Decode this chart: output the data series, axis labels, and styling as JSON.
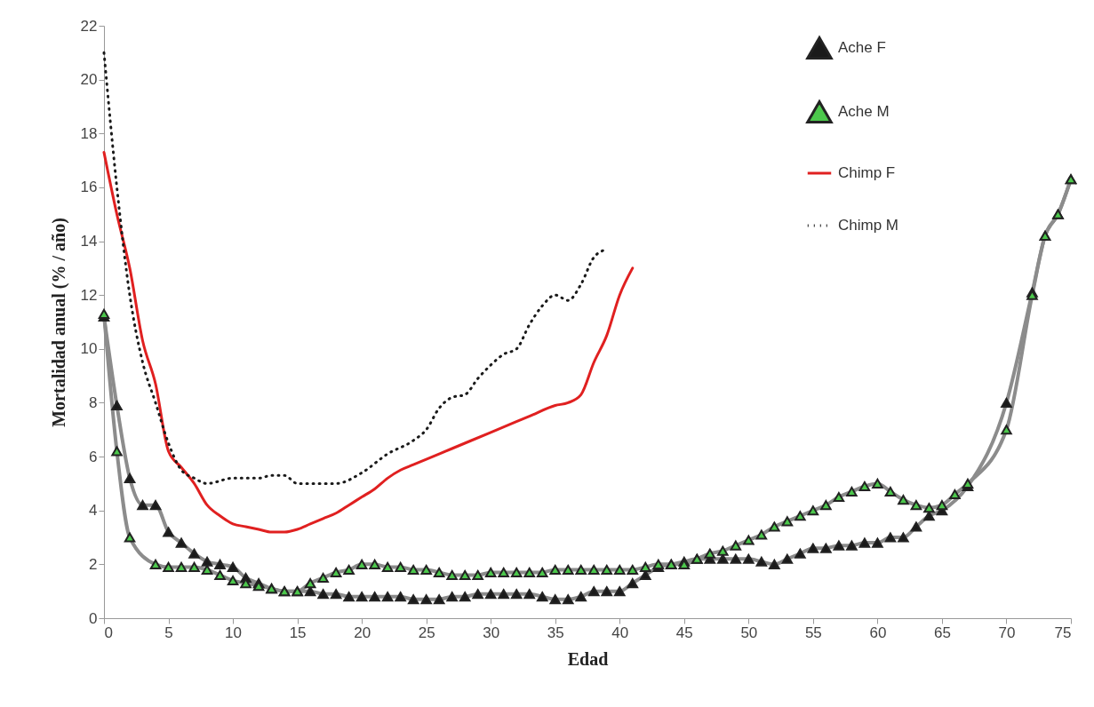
{
  "chart_data": {
    "type": "line",
    "xlabel": "Edad",
    "ylabel": "Mortalidad anual (% / año)",
    "xlim": [
      0,
      75
    ],
    "xticks": [
      0,
      5,
      10,
      15,
      20,
      25,
      30,
      35,
      40,
      45,
      50,
      55,
      60,
      65,
      70,
      75
    ],
    "ylim": [
      0,
      22
    ],
    "yticks": [
      0,
      2,
      4,
      6,
      8,
      10,
      12,
      14,
      16,
      18,
      20,
      22
    ],
    "grid": false,
    "legend": "top right",
    "series": [
      {
        "name": "Ache F",
        "color": "#1a1a1a",
        "marker": "triangle",
        "line_style": "solid",
        "x": [
          0,
          1,
          2,
          3,
          4,
          5,
          6,
          7,
          8,
          9,
          10,
          11,
          12,
          13,
          14,
          15,
          16,
          17,
          18,
          19,
          20,
          21,
          22,
          23,
          24,
          25,
          26,
          27,
          28,
          29,
          30,
          31,
          32,
          33,
          34,
          35,
          36,
          37,
          38,
          39,
          40,
          41,
          42,
          43,
          44,
          45,
          46,
          47,
          48,
          49,
          50,
          51,
          52,
          53,
          54,
          55,
          56,
          57,
          58,
          59,
          60,
          61,
          62,
          63,
          64,
          65,
          67,
          70,
          72,
          73,
          74,
          75
        ],
        "values": [
          11.2,
          7.9,
          5.2,
          4.2,
          4.2,
          3.2,
          2.8,
          2.4,
          2.1,
          2.0,
          1.9,
          1.5,
          1.3,
          1.1,
          1.0,
          1.0,
          1.0,
          0.9,
          0.9,
          0.8,
          0.8,
          0.8,
          0.8,
          0.8,
          0.7,
          0.7,
          0.7,
          0.8,
          0.8,
          0.9,
          0.9,
          0.9,
          0.9,
          0.9,
          0.8,
          0.7,
          0.7,
          0.8,
          1.0,
          1.0,
          1.0,
          1.3,
          1.6,
          1.9,
          2.0,
          2.1,
          2.2,
          2.2,
          2.2,
          2.2,
          2.2,
          2.1,
          2.0,
          2.2,
          2.4,
          2.6,
          2.6,
          2.7,
          2.7,
          2.8,
          2.8,
          3.0,
          3.0,
          3.4,
          3.8,
          4.0,
          4.9,
          8.0,
          12.1,
          14.2,
          15.0,
          16.3
        ]
      },
      {
        "name": "Ache M",
        "color": "#4cc84c",
        "marker": "triangle",
        "line_style": "solid",
        "x": [
          0,
          1,
          2,
          4,
          5,
          6,
          7,
          8,
          9,
          10,
          11,
          12,
          13,
          14,
          15,
          16,
          17,
          18,
          19,
          20,
          21,
          22,
          23,
          24,
          25,
          26,
          27,
          28,
          29,
          30,
          31,
          32,
          33,
          34,
          35,
          36,
          37,
          38,
          39,
          40,
          41,
          42,
          43,
          44,
          45,
          46,
          47,
          48,
          49,
          50,
          51,
          52,
          53,
          54,
          55,
          56,
          57,
          58,
          59,
          60,
          61,
          62,
          63,
          64,
          65,
          66,
          67,
          70,
          72,
          73,
          74,
          75
        ],
        "values": [
          11.3,
          6.2,
          3.0,
          2.0,
          1.9,
          1.9,
          1.9,
          1.8,
          1.6,
          1.4,
          1.3,
          1.2,
          1.1,
          1.0,
          1.0,
          1.3,
          1.5,
          1.7,
          1.8,
          2.0,
          2.0,
          1.9,
          1.9,
          1.8,
          1.8,
          1.7,
          1.6,
          1.6,
          1.6,
          1.7,
          1.7,
          1.7,
          1.7,
          1.7,
          1.8,
          1.8,
          1.8,
          1.8,
          1.8,
          1.8,
          1.8,
          1.9,
          2.0,
          2.0,
          2.0,
          2.2,
          2.4,
          2.5,
          2.7,
          2.9,
          3.1,
          3.4,
          3.6,
          3.8,
          4.0,
          4.2,
          4.5,
          4.7,
          4.9,
          5.0,
          4.7,
          4.4,
          4.2,
          4.1,
          4.2,
          4.6,
          5.0,
          7.0,
          12.0,
          14.2,
          15.0,
          16.3
        ]
      },
      {
        "name": "Chimp F",
        "color": "#e02020",
        "marker": "none",
        "line_style": "solid",
        "x": [
          0,
          1,
          2,
          3,
          4,
          5,
          6,
          7,
          8,
          9,
          10,
          11,
          12,
          13,
          14,
          15,
          16,
          17,
          18,
          19,
          20,
          21,
          22,
          23,
          24,
          25,
          27,
          30,
          33,
          35,
          36,
          37,
          38,
          39,
          40,
          41
        ],
        "values": [
          17.3,
          15.0,
          13.0,
          10.3,
          8.7,
          6.2,
          5.6,
          5.0,
          4.2,
          3.8,
          3.5,
          3.4,
          3.3,
          3.2,
          3.2,
          3.3,
          3.5,
          3.7,
          3.9,
          4.2,
          4.5,
          4.8,
          5.2,
          5.5,
          5.7,
          5.9,
          6.3,
          6.9,
          7.5,
          7.9,
          8.0,
          8.3,
          9.5,
          10.5,
          12.0,
          13.0
        ]
      },
      {
        "name": "Chimp M",
        "color": "#1a1a1a",
        "marker": "none",
        "line_style": "dotted",
        "x": [
          0,
          1,
          2,
          3,
          4,
          5,
          6,
          7,
          8,
          10,
          12,
          13,
          14,
          15,
          16,
          18,
          20,
          22,
          24,
          25,
          26,
          27,
          28,
          29,
          30,
          31,
          32,
          33,
          34,
          35,
          36,
          37,
          38,
          39
        ],
        "values": [
          21.0,
          16.0,
          12.0,
          9.5,
          8.0,
          6.5,
          5.5,
          5.2,
          5.0,
          5.2,
          5.2,
          5.3,
          5.3,
          5.0,
          5.0,
          5.0,
          5.4,
          6.1,
          6.6,
          7.0,
          7.8,
          8.2,
          8.3,
          8.9,
          9.4,
          9.8,
          10.0,
          10.9,
          11.6,
          12.0,
          11.8,
          12.4,
          13.4,
          13.7
        ]
      }
    ]
  }
}
